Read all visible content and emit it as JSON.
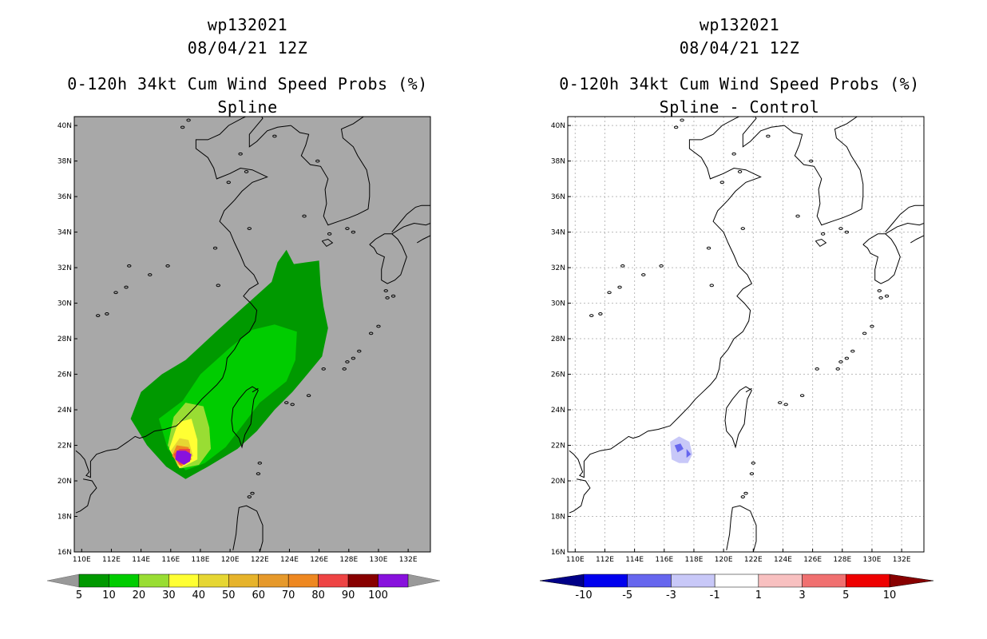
{
  "chart_data": [
    {
      "type": "heatmap",
      "id": "left",
      "title_lines": [
        "wp132021",
        "08/04/21 12Z",
        "0-120h 34kt Cum Wind Speed Probs (%)",
        "Spline"
      ],
      "x_ticks": [
        "110E",
        "112E",
        "114E",
        "116E",
        "118E",
        "120E",
        "122E",
        "124E",
        "126E",
        "128E",
        "130E",
        "132E"
      ],
      "y_ticks": [
        "16N",
        "18N",
        "20N",
        "22N",
        "24N",
        "26N",
        "28N",
        "30N",
        "32N",
        "34N",
        "36N",
        "38N",
        "40N"
      ],
      "xlim": [
        109.5,
        133.5
      ],
      "ylim": [
        16,
        40.5
      ],
      "background": "#a8a8a8",
      "colorbar": {
        "labels": [
          "5",
          "10",
          "20",
          "30",
          "40",
          "50",
          "60",
          "70",
          "80",
          "90",
          "100"
        ],
        "colors": [
          "#009900",
          "#00cc00",
          "#99dd33",
          "#ffff33",
          "#e6d633",
          "#e6b32b",
          "#e6992b",
          "#ee8821",
          "#ee4444",
          "#880000",
          "#8811dd"
        ],
        "end_color": "#999999"
      },
      "contours": [
        {
          "level": 5,
          "color": "#009900",
          "points": [
            [
              117,
              20.1
            ],
            [
              115.7,
              20.8
            ],
            [
              114.4,
              22
            ],
            [
              113.3,
              23.5
            ],
            [
              114,
              25
            ],
            [
              115.4,
              26
            ],
            [
              117,
              26.8
            ],
            [
              119.2,
              28.5
            ],
            [
              121.2,
              30
            ],
            [
              122.8,
              31.2
            ],
            [
              123.2,
              32.3
            ],
            [
              123.8,
              33
            ],
            [
              124.3,
              32.2
            ],
            [
              126,
              32.4
            ],
            [
              126.1,
              31
            ],
            [
              126.3,
              29.8
            ],
            [
              126.6,
              28.6
            ],
            [
              126.2,
              27
            ],
            [
              125.2,
              26
            ],
            [
              124.2,
              25
            ],
            [
              123,
              24
            ],
            [
              121.8,
              22.8
            ],
            [
              120.5,
              21.8
            ],
            [
              118.5,
              20.8
            ]
          ]
        },
        {
          "level": 10,
          "color": "#00cc00",
          "points": [
            [
              117,
              20.6
            ],
            [
              115.8,
              21.8
            ],
            [
              115.2,
              23.5
            ],
            [
              116.8,
              24.5
            ],
            [
              118,
              26
            ],
            [
              120,
              27.5
            ],
            [
              121.5,
              28.5
            ],
            [
              123,
              28.8
            ],
            [
              124.5,
              28.4
            ],
            [
              124.4,
              26.8
            ],
            [
              123.8,
              25.6
            ],
            [
              122,
              24.4
            ],
            [
              121,
              23.3
            ],
            [
              119.7,
              21.9
            ],
            [
              118.3,
              21
            ]
          ]
        },
        {
          "level": 20,
          "color": "#99dd33",
          "points": [
            [
              116.7,
              20.7
            ],
            [
              115.8,
              22
            ],
            [
              116.2,
              23.6
            ],
            [
              117,
              24.4
            ],
            [
              118.2,
              24.2
            ],
            [
              118.6,
              23
            ],
            [
              118.7,
              21.8
            ],
            [
              117.9,
              20.9
            ]
          ]
        },
        {
          "level": 30,
          "color": "#ffff33",
          "points": [
            [
              116.6,
              20.7
            ],
            [
              115.9,
              21.8
            ],
            [
              116.5,
              23.3
            ],
            [
              117.4,
              23.5
            ],
            [
              117.8,
              22.3
            ],
            [
              117.8,
              21.2
            ]
          ]
        },
        {
          "level": 40,
          "color": "#e6d633",
          "points": [
            [
              116.5,
              20.8
            ],
            [
              116,
              21.7
            ],
            [
              116.6,
              22.4
            ],
            [
              117.2,
              22.3
            ],
            [
              117.5,
              21.4
            ]
          ]
        },
        {
          "level": 60,
          "color": "#ee8821",
          "points": [
            [
              116.7,
              20.8
            ],
            [
              116.1,
              21.4
            ],
            [
              116.4,
              22
            ],
            [
              117.2,
              21.9
            ],
            [
              117.4,
              21.2
            ]
          ]
        },
        {
          "level": 80,
          "color": "#ee4444",
          "points": [
            [
              116.6,
              20.9
            ],
            [
              116.2,
              21.5
            ],
            [
              116.6,
              21.8
            ],
            [
              117.3,
              21.8
            ],
            [
              117.3,
              21.1
            ]
          ]
        },
        {
          "level": 100,
          "color": "#8811dd",
          "points": [
            [
              116.9,
              20.9
            ],
            [
              116.3,
              21.2
            ],
            [
              116.4,
              21.7
            ],
            [
              117,
              21.7
            ],
            [
              117.4,
              21.5
            ],
            [
              117.3,
              21.1
            ]
          ]
        }
      ]
    },
    {
      "type": "heatmap",
      "id": "right",
      "title_lines": [
        "wp132021",
        "08/04/21 12Z",
        "0-120h 34kt Cum Wind Speed Probs (%)",
        "Spline - Control"
      ],
      "x_ticks": [
        "110E",
        "112E",
        "114E",
        "116E",
        "118E",
        "120E",
        "122E",
        "124E",
        "126E",
        "128E",
        "130E",
        "132E"
      ],
      "y_ticks": [
        "16N",
        "18N",
        "20N",
        "22N",
        "24N",
        "26N",
        "28N",
        "30N",
        "32N",
        "34N",
        "36N",
        "38N",
        "40N"
      ],
      "xlim": [
        109.5,
        133.5
      ],
      "ylim": [
        16,
        40.5
      ],
      "background": "#ffffff",
      "colorbar": {
        "labels": [
          "-10",
          "-5",
          "-3",
          "-1",
          "1",
          "3",
          "5",
          "10"
        ],
        "colors": [
          "#0000ee",
          "#6666ee",
          "#c8c8f8",
          "#ffffff",
          "#f8c0c0",
          "#f07070",
          "#ee0000"
        ],
        "low_end_color": "#000088",
        "high_end_color": "#880000"
      },
      "contours": [
        {
          "level": -1,
          "color": "#c8c8f8",
          "points": [
            [
              116.5,
              21.2
            ],
            [
              116.4,
              22.2
            ],
            [
              117,
              22.5
            ],
            [
              117.7,
              22.2
            ],
            [
              117.9,
              21.5
            ],
            [
              117.6,
              21
            ],
            [
              117,
              21
            ]
          ]
        },
        {
          "level": -3,
          "color": "#6666ee",
          "points": [
            [
              116.9,
              21.6
            ],
            [
              116.7,
              22
            ],
            [
              117.1,
              22.1
            ],
            [
              117.3,
              21.8
            ]
          ]
        },
        {
          "level": -3,
          "color": "#6666ee",
          "points": [
            [
              117.5,
              21.3
            ],
            [
              117.5,
              21.8
            ],
            [
              117.8,
              21.5
            ]
          ]
        }
      ]
    }
  ]
}
